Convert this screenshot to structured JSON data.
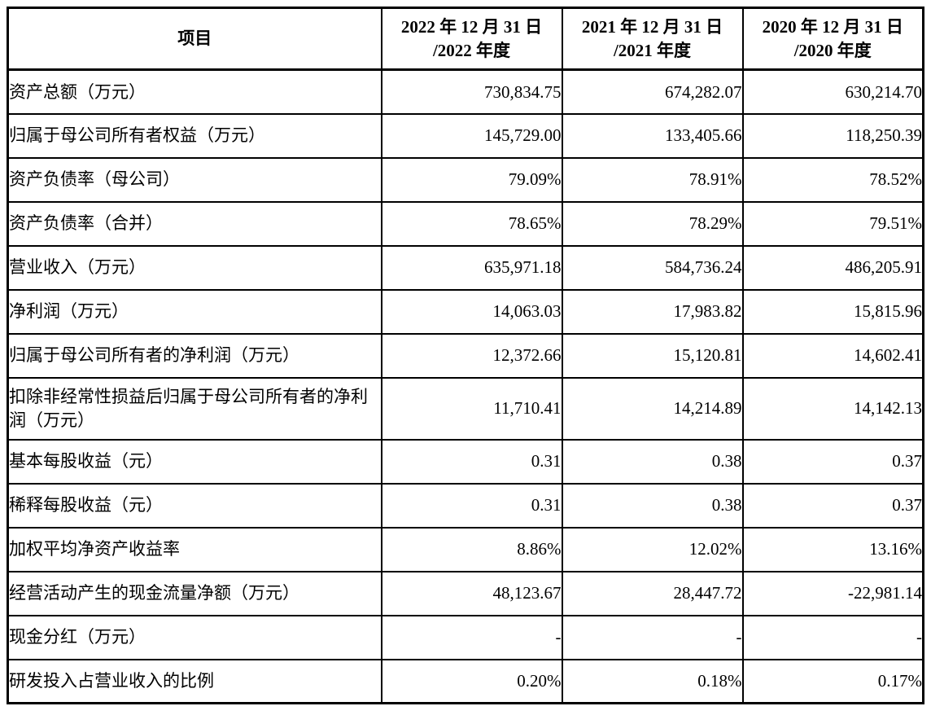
{
  "page": {
    "background_color": "#ffffff",
    "text_color": "#000000",
    "border_color": "#000000"
  },
  "table": {
    "columns": {
      "item": "项目",
      "y2022": "2022 年 12 月 31 日\n/2022 年度",
      "y2021": "2021 年 12 月 31 日\n/2021 年度",
      "y2020": "2020 年 12 月 31 日\n/2020 年度"
    },
    "rows": [
      {
        "label": "资产总额（万元）",
        "y2022": "730,834.75",
        "y2021": "674,282.07",
        "y2020": "630,214.70"
      },
      {
        "label": "归属于母公司所有者权益（万元）",
        "y2022": "145,729.00",
        "y2021": "133,405.66",
        "y2020": "118,250.39"
      },
      {
        "label": "资产负债率（母公司）",
        "y2022": "79.09%",
        "y2021": "78.91%",
        "y2020": "78.52%"
      },
      {
        "label": "资产负债率（合并）",
        "y2022": "78.65%",
        "y2021": "78.29%",
        "y2020": "79.51%"
      },
      {
        "label": "营业收入（万元）",
        "y2022": "635,971.18",
        "y2021": "584,736.24",
        "y2020": "486,205.91"
      },
      {
        "label": "净利润（万元）",
        "y2022": "14,063.03",
        "y2021": "17,983.82",
        "y2020": "15,815.96"
      },
      {
        "label": "归属于母公司所有者的净利润（万元）",
        "y2022": "12,372.66",
        "y2021": "15,120.81",
        "y2020": "14,602.41"
      },
      {
        "label": "扣除非经常性损益后归属于母公司所有者的净利润（万元）",
        "y2022": "11,710.41",
        "y2021": "14,214.89",
        "y2020": "14,142.13"
      },
      {
        "label": "基本每股收益（元）",
        "y2022": "0.31",
        "y2021": "0.38",
        "y2020": "0.37"
      },
      {
        "label": "稀释每股收益（元）",
        "y2022": "0.31",
        "y2021": "0.38",
        "y2020": "0.37"
      },
      {
        "label": "加权平均净资产收益率",
        "y2022": "8.86%",
        "y2021": "12.02%",
        "y2020": "13.16%"
      },
      {
        "label": "经营活动产生的现金流量净额（万元）",
        "y2022": "48,123.67",
        "y2021": "28,447.72",
        "y2020": "-22,981.14"
      },
      {
        "label": "现金分红（万元）",
        "y2022": "-",
        "y2021": "-",
        "y2020": "-"
      },
      {
        "label": "研发投入占营业收入的比例",
        "y2022": "0.20%",
        "y2021": "0.18%",
        "y2020": "0.17%"
      }
    ]
  }
}
